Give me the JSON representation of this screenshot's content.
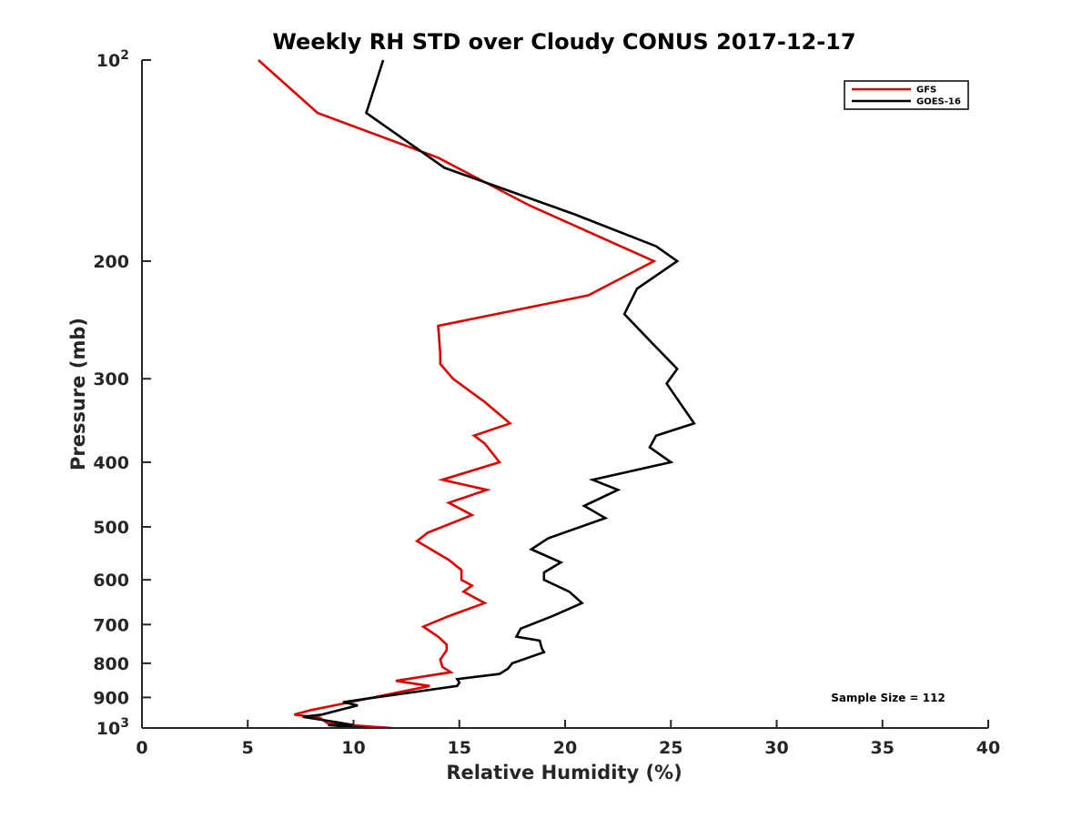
{
  "chart_data": {
    "type": "line",
    "title": "Weekly RH STD over Cloudy CONUS 2017-12-17",
    "xlabel": "Relative Humidity (%)",
    "ylabel": "Pressure (mb)",
    "xlim": [
      0,
      40
    ],
    "ylim": [
      100,
      1000
    ],
    "yscale": "log",
    "y_reversed": true,
    "grid": false,
    "legend_position": "top-right",
    "x_ticks": [
      "0",
      "5",
      "10",
      "15",
      "20",
      "25",
      "30",
      "35",
      "40"
    ],
    "x_tick_values": [
      0,
      5,
      10,
      15,
      20,
      25,
      30,
      35,
      40
    ],
    "y_ticks": [
      {
        "value": 100,
        "base": "10",
        "exp": "2"
      },
      {
        "value": 200,
        "label": "200"
      },
      {
        "value": 300,
        "label": "300"
      },
      {
        "value": 400,
        "label": "400"
      },
      {
        "value": 500,
        "label": "500"
      },
      {
        "value": 600,
        "label": "600"
      },
      {
        "value": 700,
        "label": "700"
      },
      {
        "value": 800,
        "label": "800"
      },
      {
        "value": 900,
        "label": "900"
      },
      {
        "value": 1000,
        "base": "10",
        "exp": "3"
      }
    ],
    "annotation": "Sample Size = 112",
    "series": [
      {
        "name": "GFS",
        "color": "#e00000",
        "points": [
          [
            5.5,
            100
          ],
          [
            8.3,
            120
          ],
          [
            14.0,
            140
          ],
          [
            18.3,
            165
          ],
          [
            24.2,
            200
          ],
          [
            21.1,
            225
          ],
          [
            14.0,
            250
          ],
          [
            14.1,
            275
          ],
          [
            14.1,
            285
          ],
          [
            14.7,
            300
          ],
          [
            16.2,
            325
          ],
          [
            17.4,
            350
          ],
          [
            15.7,
            365
          ],
          [
            16.2,
            375
          ],
          [
            16.9,
            400
          ],
          [
            14.2,
            425
          ],
          [
            16.3,
            440
          ],
          [
            14.5,
            460
          ],
          [
            15.6,
            480
          ],
          [
            13.5,
            510
          ],
          [
            13.0,
            525
          ],
          [
            14.5,
            560
          ],
          [
            15.1,
            580
          ],
          [
            15.1,
            600
          ],
          [
            15.6,
            612
          ],
          [
            15.2,
            625
          ],
          [
            16.2,
            650
          ],
          [
            14.5,
            680
          ],
          [
            13.3,
            705
          ],
          [
            14.0,
            730
          ],
          [
            14.4,
            750
          ],
          [
            14.4,
            765
          ],
          [
            14.1,
            790
          ],
          [
            14.2,
            810
          ],
          [
            14.6,
            825
          ],
          [
            12.0,
            850
          ],
          [
            13.6,
            865
          ],
          [
            8.0,
            940
          ],
          [
            7.2,
            955
          ],
          [
            8.4,
            965
          ],
          [
            8.8,
            985
          ],
          [
            11.8,
            1000
          ]
        ]
      },
      {
        "name": "GOES-16",
        "color": "#000000",
        "points": [
          [
            11.4,
            100
          ],
          [
            10.6,
            120
          ],
          [
            14.3,
            145
          ],
          [
            20.4,
            170
          ],
          [
            24.3,
            190
          ],
          [
            25.3,
            200
          ],
          [
            23.4,
            220
          ],
          [
            22.8,
            240
          ],
          [
            24.1,
            265
          ],
          [
            25.3,
            290
          ],
          [
            24.8,
            305
          ],
          [
            25.4,
            325
          ],
          [
            26.1,
            350
          ],
          [
            24.3,
            365
          ],
          [
            24.0,
            380
          ],
          [
            25.0,
            400
          ],
          [
            21.3,
            425
          ],
          [
            22.5,
            440
          ],
          [
            20.9,
            465
          ],
          [
            21.9,
            485
          ],
          [
            19.2,
            520
          ],
          [
            18.4,
            540
          ],
          [
            19.8,
            565
          ],
          [
            19.0,
            585
          ],
          [
            19.0,
            600
          ],
          [
            20.2,
            625
          ],
          [
            20.8,
            650
          ],
          [
            19.4,
            680
          ],
          [
            17.9,
            710
          ],
          [
            17.7,
            730
          ],
          [
            18.8,
            740
          ],
          [
            18.9,
            760
          ],
          [
            19.0,
            770
          ],
          [
            17.5,
            800
          ],
          [
            17.3,
            815
          ],
          [
            16.9,
            830
          ],
          [
            14.9,
            845
          ],
          [
            15.0,
            855
          ],
          [
            14.9,
            865
          ],
          [
            10.5,
            905
          ],
          [
            9.5,
            915
          ],
          [
            10.2,
            925
          ],
          [
            8.5,
            955
          ],
          [
            7.6,
            962
          ],
          [
            9.2,
            980
          ],
          [
            10.0,
            990
          ],
          [
            8.8,
            990
          ],
          [
            10.6,
            1000
          ]
        ]
      }
    ]
  }
}
